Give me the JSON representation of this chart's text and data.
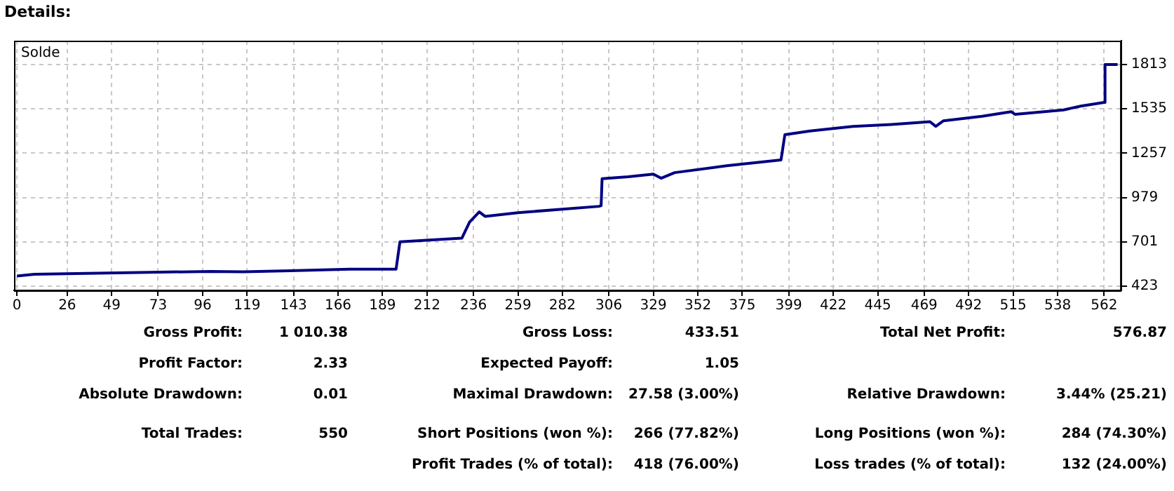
{
  "chart_data": {
    "type": "line",
    "title": "Details:",
    "legend": "top left",
    "grid": true,
    "marker": "none",
    "line_style": "solid",
    "xlim": [
      -1.5,
      571
    ],
    "xticks": [
      0,
      26,
      49,
      73,
      96,
      119,
      143,
      166,
      189,
      212,
      236,
      259,
      282,
      306,
      329,
      352,
      375,
      399,
      422,
      445,
      469,
      492,
      515,
      538,
      562
    ],
    "ylim": [
      397,
      1962
    ],
    "yticks": [
      423,
      701,
      979,
      1257,
      1535,
      1813
    ],
    "x": [
      0,
      9,
      52,
      100,
      117,
      141,
      172,
      196,
      198,
      230,
      234,
      239,
      242,
      259,
      301,
      302,
      302.5,
      316,
      329,
      333,
      340,
      367,
      395,
      397,
      410,
      432,
      452,
      472,
      475,
      479,
      499,
      514,
      516,
      541,
      550,
      562,
      562.5,
      569
    ],
    "series": [
      {
        "name": "Solde",
        "color": "#000080",
        "values": [
          487,
          498,
          507,
          516,
          513,
          520,
          530,
          530,
          701,
          724,
          825,
          889,
          861,
          884,
          924,
          928,
          1097,
          1109,
          1126,
          1100,
          1135,
          1178,
          1215,
          1373,
          1396,
          1425,
          1437,
          1454,
          1425,
          1460,
          1488,
          1517,
          1500,
          1528,
          1552,
          1575,
          1813,
          1813
        ]
      }
    ],
    "annotations": [
      "Gross Profit:",
      "1 010.38",
      "Gross Loss:",
      "433.51",
      "Total Net Profit:",
      "576.87",
      "Profit Factor:",
      "2.33",
      "Expected Payoff:",
      "1.05",
      "Absolute Drawdown:",
      "0.01",
      "Maximal Drawdown:",
      "27.58 (3.00%)",
      "Relative Drawdown:",
      "3.44% (25.21)",
      "Total Trades:",
      "550",
      "Short Positions (won %):",
      "266 (77.82%)",
      "Long Positions (won %):",
      "284 (74.30%)",
      "Profit Trades (% of total):",
      "418 (76.00%)",
      "Loss trades (% of total):",
      "132 (24.00%)"
    ]
  }
}
